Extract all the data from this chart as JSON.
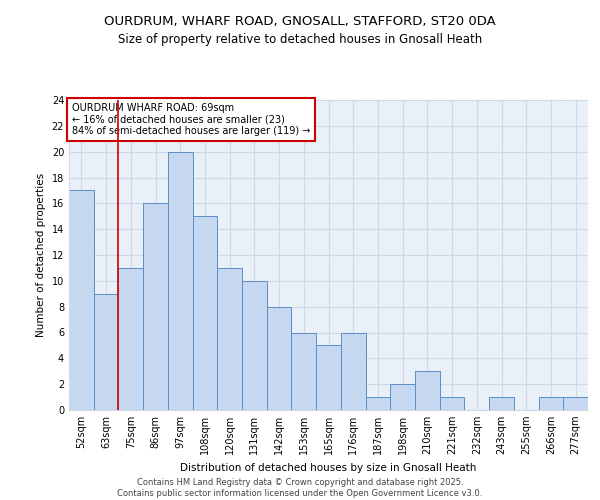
{
  "title1": "OURDRUM, WHARF ROAD, GNOSALL, STAFFORD, ST20 0DA",
  "title2": "Size of property relative to detached houses in Gnosall Heath",
  "xlabel": "Distribution of detached houses by size in Gnosall Heath",
  "ylabel": "Number of detached properties",
  "categories": [
    "52sqm",
    "63sqm",
    "75sqm",
    "86sqm",
    "97sqm",
    "108sqm",
    "120sqm",
    "131sqm",
    "142sqm",
    "153sqm",
    "165sqm",
    "176sqm",
    "187sqm",
    "198sqm",
    "210sqm",
    "221sqm",
    "232sqm",
    "243sqm",
    "255sqm",
    "266sqm",
    "277sqm"
  ],
  "values": [
    17,
    9,
    11,
    16,
    20,
    15,
    11,
    10,
    8,
    6,
    5,
    6,
    1,
    2,
    3,
    1,
    0,
    1,
    0,
    1,
    1
  ],
  "bar_color": "#c5d8f0",
  "bar_edge_color": "#5b8ec7",
  "subject_line_color": "#cc0000",
  "annotation_text": "OURDRUM WHARF ROAD: 69sqm\n← 16% of detached houses are smaller (23)\n84% of semi-detached houses are larger (119) →",
  "annotation_box_color": "#cc0000",
  "ylim": [
    0,
    24
  ],
  "yticks": [
    0,
    2,
    4,
    6,
    8,
    10,
    12,
    14,
    16,
    18,
    20,
    22,
    24
  ],
  "grid_color": "#d0d8e8",
  "bg_color": "#eaf0f8",
  "footer": "Contains HM Land Registry data © Crown copyright and database right 2025.\nContains public sector information licensed under the Open Government Licence v3.0.",
  "title1_fontsize": 9.5,
  "title2_fontsize": 8.5,
  "axis_label_fontsize": 7.5,
  "tick_fontsize": 7,
  "annotation_fontsize": 7,
  "footer_fontsize": 6
}
